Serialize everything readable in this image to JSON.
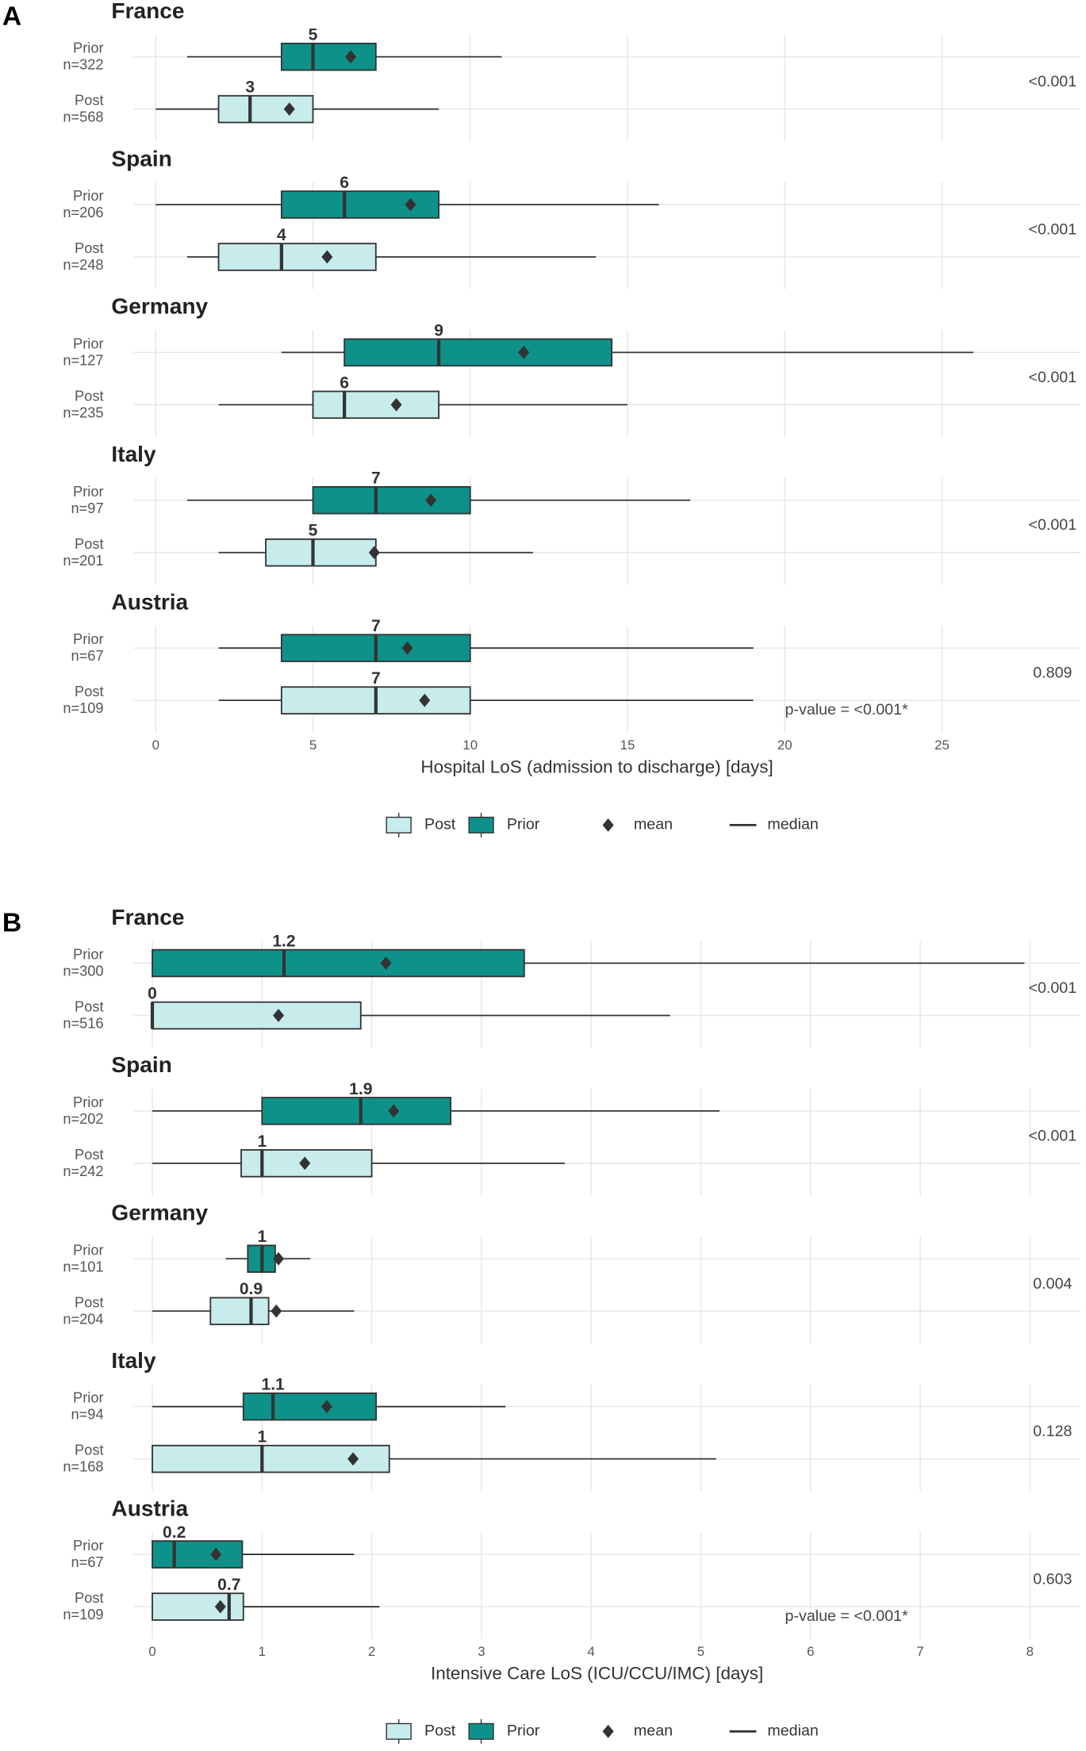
{
  "chart_data": [
    {
      "type": "boxplot",
      "panel_label": "A",
      "xlabel": "Hospital LoS (admission to discharge) [days]",
      "annotation": "p-value = <0.001*",
      "xlim": [
        -0.7,
        29.4
      ],
      "xticks": [
        0,
        5,
        10,
        15,
        20,
        25
      ],
      "grid": true,
      "series": [
        {
          "name": "Post",
          "color": "#c7eceb"
        },
        {
          "name": "Prior",
          "color": "#0e9189"
        }
      ],
      "mean_label": "mean",
      "median_label": "median",
      "groups": [
        {
          "name": "France",
          "p_value": "<0.001",
          "boxes": [
            {
              "name": "Prior",
              "n_label": "n=322",
              "whisker_low": 1,
              "q1": 4,
              "median": 5,
              "q3": 7,
              "whisker_high": 11,
              "mean": 6.2
            },
            {
              "name": "Post",
              "n_label": "n=568",
              "whisker_low": 0,
              "q1": 2,
              "median": 3,
              "q3": 5,
              "whisker_high": 9,
              "mean": 4.25
            }
          ]
        },
        {
          "name": "Spain",
          "p_value": "<0.001",
          "boxes": [
            {
              "name": "Prior",
              "n_label": "n=206",
              "whisker_low": 0,
              "q1": 4,
              "median": 6,
              "q3": 9,
              "whisker_high": 16,
              "mean": 8.1
            },
            {
              "name": "Post",
              "n_label": "n=248",
              "whisker_low": 1,
              "q1": 2,
              "median": 4,
              "q3": 7,
              "whisker_high": 14,
              "mean": 5.45
            }
          ]
        },
        {
          "name": "Germany",
          "p_value": "<0.001",
          "boxes": [
            {
              "name": "Prior",
              "n_label": "n=127",
              "whisker_low": 4,
              "q1": 6,
              "median": 9,
              "q3": 14.5,
              "whisker_high": 26,
              "mean": 11.7
            },
            {
              "name": "Post",
              "n_label": "n=235",
              "whisker_low": 2,
              "q1": 5,
              "median": 6,
              "q3": 9,
              "whisker_high": 15,
              "mean": 7.65
            }
          ]
        },
        {
          "name": "Italy",
          "p_value": "<0.001",
          "boxes": [
            {
              "name": "Prior",
              "n_label": "n=97",
              "whisker_low": 1,
              "q1": 5,
              "median": 7,
              "q3": 10,
              "whisker_high": 17,
              "mean": 8.75
            },
            {
              "name": "Post",
              "n_label": "n=201",
              "whisker_low": 2,
              "q1": 3.5,
              "median": 5,
              "q3": 7,
              "whisker_high": 12,
              "mean": 6.95
            }
          ]
        },
        {
          "name": "Austria",
          "p_value": "0.809",
          "boxes": [
            {
              "name": "Prior",
              "n_label": "n=67",
              "whisker_low": 2,
              "q1": 4,
              "median": 7,
              "q3": 10,
              "whisker_high": 19,
              "mean": 8
            },
            {
              "name": "Post",
              "n_label": "n=109",
              "whisker_low": 2,
              "q1": 4,
              "median": 7,
              "q3": 10,
              "whisker_high": 19,
              "mean": 8.55
            }
          ]
        }
      ]
    },
    {
      "type": "boxplot",
      "panel_label": "B",
      "xlabel": "Intensive Care LoS (ICU/CCU/IMC) [days]",
      "annotation": "p-value = <0.001*",
      "xlim": [
        -0.17,
        8.46
      ],
      "xticks": [
        0,
        1,
        2,
        3,
        4,
        5,
        6,
        7,
        8
      ],
      "grid": true,
      "series": [
        {
          "name": "Post",
          "color": "#c7eceb"
        },
        {
          "name": "Prior",
          "color": "#0e9189"
        }
      ],
      "mean_label": "mean",
      "median_label": "median",
      "groups": [
        {
          "name": "France",
          "p_value": "<0.001",
          "boxes": [
            {
              "name": "Prior",
              "n_label": "n=300",
              "whisker_low": 0,
              "q1": 0,
              "median": 1.2,
              "q3": 3.39,
              "whisker_high": 7.95,
              "mean": 2.13
            },
            {
              "name": "Post",
              "n_label": "n=516",
              "whisker_low": 0,
              "q1": 0,
              "median": 0,
              "q3": 1.9,
              "whisker_high": 4.72,
              "mean": 1.15
            }
          ]
        },
        {
          "name": "Spain",
          "p_value": "<0.001",
          "boxes": [
            {
              "name": "Prior",
              "n_label": "n=202",
              "whisker_low": 0,
              "q1": 1.0,
              "median": 1.9,
              "q3": 2.72,
              "whisker_high": 5.17,
              "mean": 2.2
            },
            {
              "name": "Post",
              "n_label": "n=242",
              "whisker_low": 0,
              "q1": 0.81,
              "median": 1,
              "q3": 2.0,
              "whisker_high": 3.76,
              "mean": 1.39
            }
          ]
        },
        {
          "name": "Germany",
          "p_value": "0.004",
          "boxes": [
            {
              "name": "Prior",
              "n_label": "n=101",
              "whisker_low": 0.67,
              "q1": 0.87,
              "median": 1,
              "q3": 1.12,
              "whisker_high": 1.44,
              "mean": 1.15
            },
            {
              "name": "Post",
              "n_label": "n=204",
              "whisker_low": 0,
              "q1": 0.53,
              "median": 0.9,
              "q3": 1.06,
              "whisker_high": 1.84,
              "mean": 1.13
            }
          ]
        },
        {
          "name": "Italy",
          "p_value": "0.128",
          "boxes": [
            {
              "name": "Prior",
              "n_label": "n=94",
              "whisker_low": 0,
              "q1": 0.83,
              "median": 1.1,
              "q3": 2.04,
              "whisker_high": 3.22,
              "mean": 1.59
            },
            {
              "name": "Post",
              "n_label": "n=168",
              "whisker_low": 0,
              "q1": 0,
              "median": 1,
              "q3": 2.16,
              "whisker_high": 5.14,
              "mean": 1.83
            }
          ]
        },
        {
          "name": "Austria",
          "p_value": "0.603",
          "boxes": [
            {
              "name": "Prior",
              "n_label": "n=67",
              "whisker_low": 0,
              "q1": 0,
              "median": 0.2,
              "q3": 0.82,
              "whisker_high": 1.84,
              "mean": 0.58
            },
            {
              "name": "Post",
              "n_label": "n=109",
              "whisker_low": 0,
              "q1": 0,
              "median": 0.7,
              "q3": 0.83,
              "whisker_high": 2.07,
              "mean": 0.62
            }
          ]
        }
      ]
    }
  ]
}
